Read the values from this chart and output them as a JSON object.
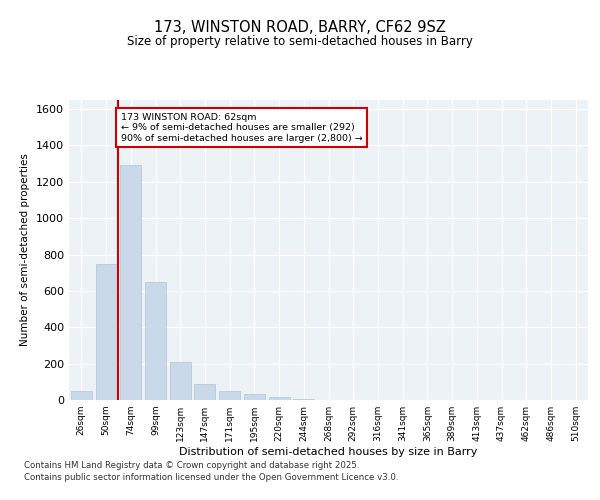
{
  "title": "173, WINSTON ROAD, BARRY, CF62 9SZ",
  "subtitle": "Size of property relative to semi-detached houses in Barry",
  "xlabel": "Distribution of semi-detached houses by size in Barry",
  "ylabel": "Number of semi-detached properties",
  "bar_color": "#c9d9ea",
  "bar_edge_color": "#b0c4d8",
  "categories": [
    "26sqm",
    "50sqm",
    "74sqm",
    "99sqm",
    "123sqm",
    "147sqm",
    "171sqm",
    "195sqm",
    "220sqm",
    "244sqm",
    "268sqm",
    "292sqm",
    "316sqm",
    "341sqm",
    "365sqm",
    "389sqm",
    "413sqm",
    "437sqm",
    "462sqm",
    "486sqm",
    "510sqm"
  ],
  "values": [
    50,
    750,
    1290,
    650,
    210,
    90,
    50,
    32,
    18,
    6,
    2,
    0,
    0,
    0,
    0,
    0,
    0,
    0,
    0,
    0,
    0
  ],
  "ylim": [
    0,
    1650
  ],
  "yticks": [
    0,
    200,
    400,
    600,
    800,
    1000,
    1200,
    1400,
    1600
  ],
  "vline_x": 1.5,
  "annotation_line1": "173 WINSTON ROAD: 62sqm",
  "annotation_line2": "← 9% of semi-detached houses are smaller (292)",
  "annotation_line3": "90% of semi-detached houses are larger (2,800) →",
  "vline_color": "#cc0000",
  "background_color": "#edf2f7",
  "grid_color": "#ffffff",
  "footer_line1": "Contains HM Land Registry data © Crown copyright and database right 2025.",
  "footer_line2": "Contains public sector information licensed under the Open Government Licence v3.0."
}
